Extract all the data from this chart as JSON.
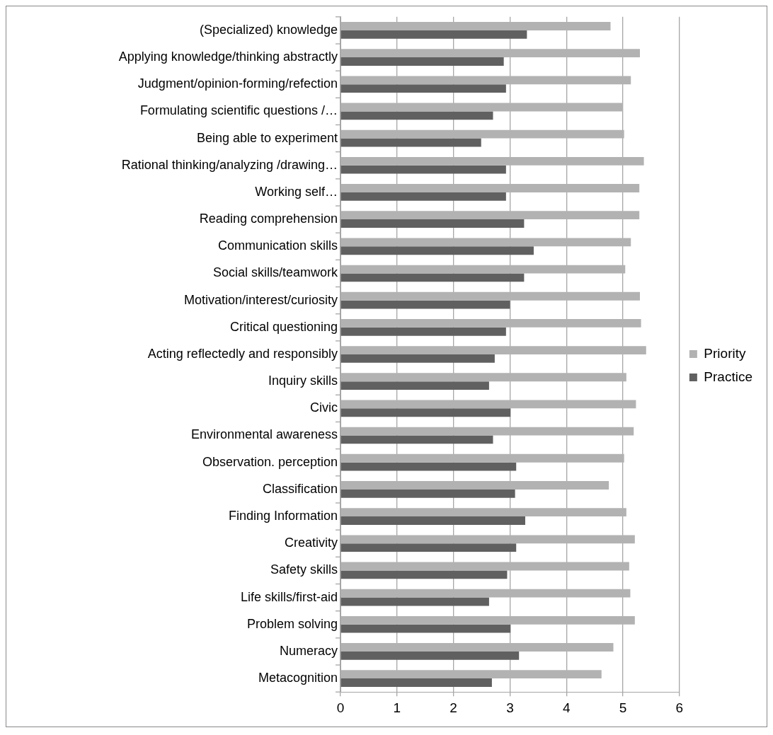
{
  "chart_data": {
    "type": "bar",
    "orientation": "horizontal",
    "categories": [
      "(Specialized) knowledge",
      "Applying knowledge/thinking abstractly",
      "Judgment/opinion-forming/refection",
      "Formulating scientific questions /…",
      "Being able to experiment",
      "Rational thinking/analyzing /drawing…",
      "Working self…",
      "Reading comprehension",
      "Communication skills",
      "Social skills/teamwork",
      "Motivation/interest/curiosity",
      "Critical questioning",
      "Acting reflectedly and responsibly",
      "Inquiry skills",
      "Civic",
      "Environmental awareness",
      "Observation. perception",
      "Classification",
      "Finding Information",
      "Creativity",
      "Safety skills",
      "Life skills/first-aid",
      "Problem solving",
      "Numeracy",
      "Metacognition"
    ],
    "series": [
      {
        "name": "Priority",
        "color": "#b2b2b2",
        "values": [
          4.78,
          5.3,
          5.14,
          5.0,
          5.02,
          5.37,
          5.29,
          5.29,
          5.14,
          5.04,
          5.3,
          5.32,
          5.41,
          5.06,
          5.23,
          5.19,
          5.02,
          4.75,
          5.06,
          5.21,
          5.11,
          5.13,
          5.21,
          4.83,
          4.62
        ]
      },
      {
        "name": "Practice",
        "color": "#606060",
        "values": [
          3.3,
          2.89,
          2.93,
          2.7,
          2.49,
          2.93,
          2.93,
          3.25,
          3.42,
          3.25,
          3.0,
          2.93,
          2.73,
          2.63,
          3.01,
          2.7,
          3.11,
          3.09,
          3.27,
          3.11,
          2.95,
          2.63,
          3.01,
          3.16,
          2.68
        ]
      }
    ],
    "xlim": [
      0,
      6
    ],
    "xticks": [
      0,
      1,
      2,
      3,
      4,
      5,
      6
    ],
    "grid": "x",
    "legend": "right"
  }
}
